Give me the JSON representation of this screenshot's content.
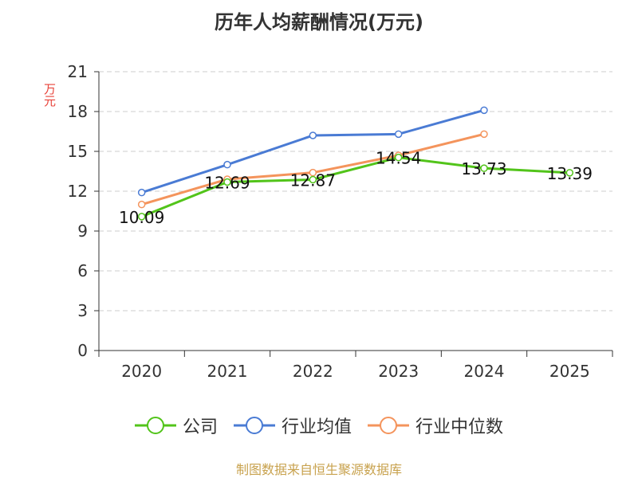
{
  "chart_data": {
    "type": "line",
    "title": "历年人均薪酬情况(万元)",
    "ylabel": "万元",
    "xlabel": "",
    "categories": [
      "2020",
      "2021",
      "2022",
      "2023",
      "2024",
      "2025"
    ],
    "ylim": [
      0,
      21
    ],
    "yticks": [
      0,
      3,
      6,
      9,
      12,
      15,
      18,
      21
    ],
    "grid": true,
    "legend_position": "bottom",
    "series": [
      {
        "name": "公司",
        "color": "#52c41a",
        "values": [
          10.09,
          12.69,
          12.87,
          14.54,
          13.73,
          13.39
        ],
        "labels": [
          "10.09",
          "12.69",
          "12.87",
          "14.54",
          "13.73",
          "13.39"
        ]
      },
      {
        "name": "行业均值",
        "color": "#4a7bd4",
        "values": [
          11.9,
          14.0,
          16.2,
          16.3,
          18.1,
          null
        ],
        "labels": []
      },
      {
        "name": "行业中位数",
        "color": "#f4945c",
        "values": [
          11.0,
          12.9,
          13.4,
          14.7,
          16.3,
          null
        ],
        "labels": []
      }
    ]
  },
  "source": "制图数据来自恒生聚源数据库"
}
